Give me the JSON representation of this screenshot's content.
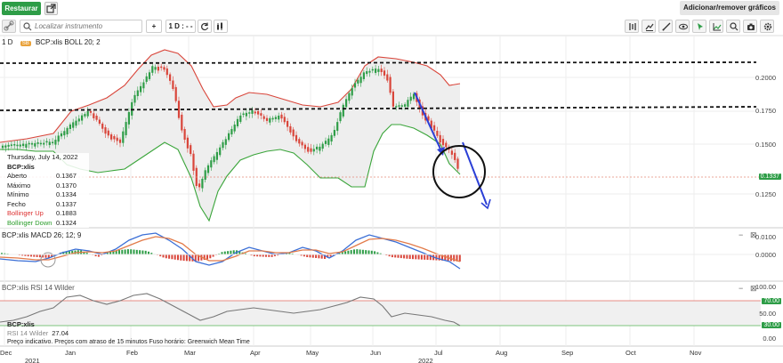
{
  "topbar": {
    "restore_label": "Restaurar",
    "add_remove_label": "Adicionar/remover gráficos"
  },
  "toolbar": {
    "search_placeholder": "Localizar instrumento",
    "plus_label": "+",
    "interval_label": "1 D : - -",
    "icons": [
      "link-icon",
      "search-icon",
      "plus-icon",
      "refresh-icon",
      "candles-icon",
      "indicators-icon",
      "draw-icon",
      "eye-icon",
      "cursor-icon",
      "zoom-chart-icon",
      "zoom-icon",
      "camera-icon",
      "settings-icon"
    ]
  },
  "main_pane": {
    "interval": "1 D",
    "symbol_badge": "SB",
    "title": "BCP:xlis  BOLL 20; 2",
    "y_ticks": [
      "0.2000",
      "0.1750",
      "0.1500",
      "0.1250"
    ],
    "last_price_badge": "0.1337",
    "colors": {
      "upper_band": "#d9453a",
      "lower_band": "#3aa53a",
      "up_candle": "#2e9d47",
      "down_candle": "#d9453a",
      "annotation": "#2b3fd6"
    }
  },
  "info": {
    "date": "Thursday, July 14, 2022",
    "symbol": "BCP:xlis",
    "rows": [
      {
        "label": "Aberto",
        "value": "0.1367"
      },
      {
        "label": "Máximo",
        "value": "0.1370"
      },
      {
        "label": "Mínimo",
        "value": "0.1334"
      },
      {
        "label": "Fecho",
        "value": "0.1337"
      },
      {
        "label": "Bollinger Up",
        "value": "0.1883"
      },
      {
        "label": "Bollinger Down",
        "value": "0.1324"
      }
    ]
  },
  "macd_pane": {
    "title": "BCP:xlis  MACD 26; 12; 9",
    "y_ticks": [
      "0.0100",
      "0.0000"
    ],
    "min_label": "−",
    "close_label": "⊠"
  },
  "rsi_pane": {
    "title": "BCP:xlis  RSI 14 Wilder",
    "y_ticks": [
      "100.00",
      "50.00",
      "0.00"
    ],
    "badge_high": "70.00",
    "badge_low": "30.00",
    "min_label": "−",
    "close_label": "⊠",
    "symbol": "BCP:xlis",
    "value_label": "RSI 14 Wilder",
    "value": "27.04",
    "notice": "Preço indicativo. Preços com atraso de 15 minutos    Fuso horário: Greenwich Mean Time"
  },
  "x_axis": {
    "months": [
      "Dec",
      "Jan",
      "Feb",
      "Mar",
      "Apr",
      "May",
      "Jun",
      "Jul",
      "Aug",
      "Sep",
      "Oct",
      "Nov"
    ],
    "years": [
      "2021",
      "2022"
    ]
  }
}
